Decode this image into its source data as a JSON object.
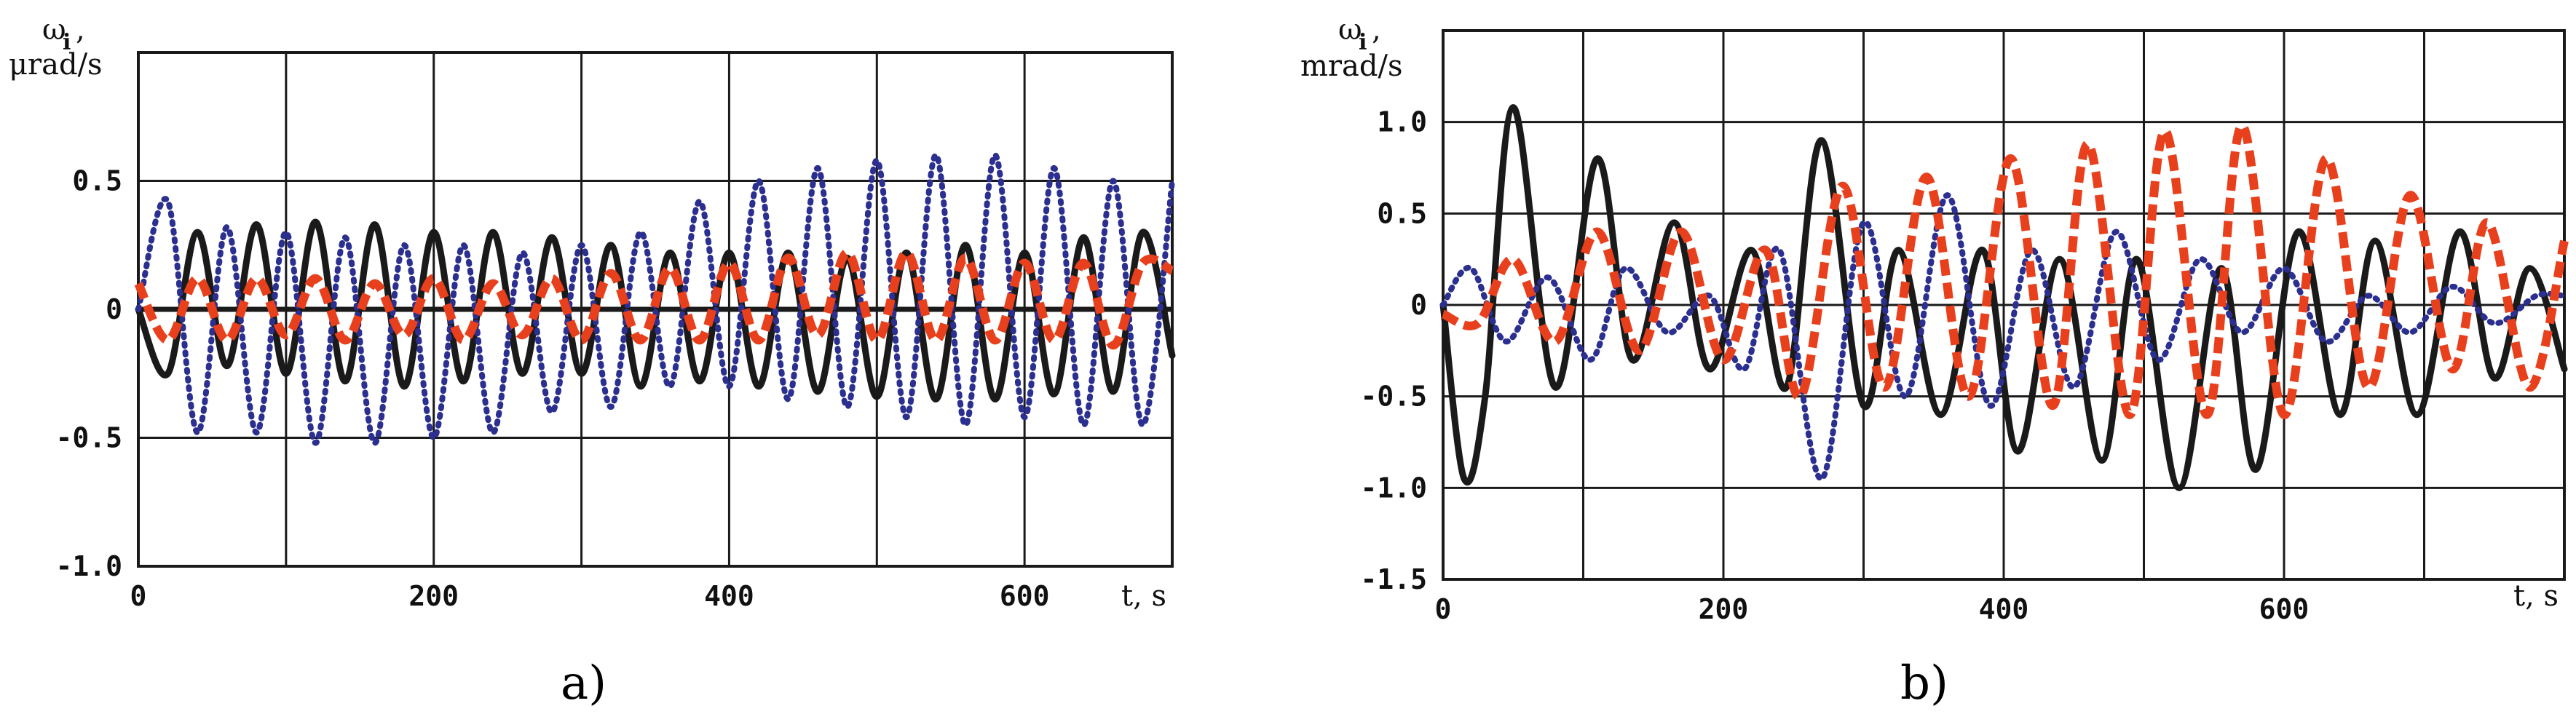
{
  "colors": {
    "series_solid": "#1a1a1a",
    "series_dotted": "#2b2f8f",
    "series_dashed": "#e8401c",
    "grid": "#1a1a1a",
    "zero_line": "#1a1a1a"
  },
  "chart_data": [
    {
      "type": "line",
      "caption": "a)",
      "ylabel_line1": "ω",
      "ylabel_sub": "i",
      "ylabel_comma": ",",
      "ylabel_line2": "μrad/s",
      "xlabel": "t, s",
      "xlim": [
        0,
        700
      ],
      "ylim": [
        -1.0,
        1.0
      ],
      "x_ticks": [
        0,
        200,
        400,
        600
      ],
      "x_tick_labels": [
        "0",
        "200",
        "400",
        "600"
      ],
      "x_grid": [
        0,
        100,
        200,
        300,
        400,
        500,
        600,
        700
      ],
      "y_ticks": [
        0.5,
        0,
        -0.5,
        -1.0
      ],
      "y_tick_labels": [
        "0.5",
        "0",
        "-0.5",
        "-1.0"
      ],
      "y_grid": [
        1.0,
        0.5,
        0,
        -0.5,
        -1.0
      ],
      "grid": true,
      "series": [
        {
          "style": "solid",
          "x": [
            0,
            20,
            40,
            60,
            80,
            100,
            120,
            140,
            160,
            180,
            200,
            220,
            240,
            260,
            280,
            300,
            320,
            340,
            360,
            380,
            400,
            420,
            440,
            460,
            480,
            500,
            520,
            540,
            560,
            580,
            600,
            620,
            640,
            660,
            680,
            700
          ],
          "values": [
            0.0,
            -0.25,
            0.3,
            -0.22,
            0.33,
            -0.25,
            0.34,
            -0.28,
            0.33,
            -0.3,
            0.3,
            -0.28,
            0.3,
            -0.25,
            0.28,
            -0.25,
            0.25,
            -0.3,
            0.22,
            -0.28,
            0.22,
            -0.3,
            0.22,
            -0.32,
            0.2,
            -0.34,
            0.22,
            -0.35,
            0.25,
            -0.35,
            0.22,
            -0.33,
            0.28,
            -0.32,
            0.3,
            -0.18
          ]
        },
        {
          "style": "dotted",
          "x": [
            0,
            20,
            40,
            60,
            80,
            100,
            120,
            140,
            160,
            180,
            200,
            220,
            240,
            260,
            280,
            300,
            320,
            340,
            360,
            380,
            400,
            420,
            440,
            460,
            480,
            500,
            520,
            540,
            560,
            580,
            600,
            620,
            640,
            660,
            680,
            700
          ],
          "values": [
            0.0,
            0.42,
            -0.48,
            0.32,
            -0.48,
            0.3,
            -0.52,
            0.28,
            -0.52,
            0.25,
            -0.5,
            0.25,
            -0.48,
            0.22,
            -0.4,
            0.25,
            -0.38,
            0.3,
            -0.3,
            0.42,
            -0.3,
            0.5,
            -0.35,
            0.55,
            -0.38,
            0.58,
            -0.42,
            0.6,
            -0.45,
            0.6,
            -0.42,
            0.55,
            -0.45,
            0.5,
            -0.45,
            0.5
          ]
        },
        {
          "style": "dashed",
          "x": [
            0,
            20,
            40,
            60,
            80,
            100,
            120,
            140,
            160,
            180,
            200,
            220,
            240,
            260,
            280,
            300,
            320,
            340,
            360,
            380,
            400,
            420,
            440,
            460,
            480,
            500,
            520,
            540,
            560,
            580,
            600,
            620,
            640,
            660,
            680,
            700
          ],
          "values": [
            0.1,
            -0.12,
            0.12,
            -0.12,
            0.12,
            -0.1,
            0.12,
            -0.12,
            0.1,
            -0.1,
            0.12,
            -0.12,
            0.1,
            -0.1,
            0.12,
            -0.12,
            0.14,
            -0.12,
            0.16,
            -0.12,
            0.18,
            -0.12,
            0.2,
            -0.1,
            0.22,
            -0.12,
            0.22,
            -0.12,
            0.2,
            -0.12,
            0.18,
            -0.12,
            0.18,
            -0.14,
            0.18,
            0.15
          ]
        }
      ]
    },
    {
      "type": "line",
      "caption": "b)",
      "ylabel_line1": "ω",
      "ylabel_sub": "i",
      "ylabel_comma": ",",
      "ylabel_line2": "mrad/s",
      "xlabel": "t, s",
      "xlim": [
        0,
        800
      ],
      "ylim": [
        -1.5,
        1.5
      ],
      "x_ticks": [
        0,
        200,
        400,
        600
      ],
      "x_tick_labels": [
        "0",
        "200",
        "400",
        "600"
      ],
      "x_grid": [
        0,
        100,
        200,
        300,
        400,
        500,
        600,
        700,
        800
      ],
      "y_ticks": [
        1.0,
        0.5,
        0,
        -0.5,
        -1.0,
        -1.5
      ],
      "y_tick_labels": [
        "1.0",
        "0.5",
        "0",
        "-0.5",
        "-1.0",
        "-1.5"
      ],
      "y_grid": [
        1.5,
        1.0,
        0.5,
        0,
        -0.5,
        -1.0,
        -1.5
      ],
      "grid": true,
      "series": [
        {
          "style": "solid",
          "x": [
            0,
            15,
            30,
            50,
            80,
            110,
            135,
            165,
            190,
            220,
            245,
            270,
            300,
            325,
            355,
            385,
            410,
            440,
            470,
            495,
            525,
            555,
            580,
            610,
            640,
            665,
            695,
            725,
            750,
            775,
            800
          ],
          "values": [
            0.0,
            -0.95,
            -0.5,
            1.08,
            -0.45,
            0.8,
            -0.3,
            0.45,
            -0.35,
            0.3,
            -0.45,
            0.9,
            -0.55,
            0.3,
            -0.6,
            0.3,
            -0.8,
            0.25,
            -0.85,
            0.25,
            -1.0,
            0.2,
            -0.9,
            0.4,
            -0.6,
            0.35,
            -0.6,
            0.4,
            -0.4,
            0.2,
            -0.35
          ]
        },
        {
          "style": "dotted",
          "x": [
            0,
            20,
            45,
            75,
            105,
            130,
            160,
            190,
            215,
            240,
            270,
            300,
            330,
            360,
            390,
            420,
            450,
            480,
            510,
            540,
            570,
            600,
            630,
            660,
            690,
            720,
            750,
            780,
            800
          ],
          "values": [
            0.0,
            0.2,
            -0.2,
            0.15,
            -0.3,
            0.2,
            -0.15,
            0.05,
            -0.35,
            0.3,
            -0.95,
            0.45,
            -0.5,
            0.6,
            -0.55,
            0.3,
            -0.45,
            0.4,
            -0.3,
            0.25,
            -0.15,
            0.2,
            -0.2,
            0.05,
            -0.15,
            0.1,
            -0.1,
            0.05,
            0.05
          ]
        },
        {
          "style": "dashed",
          "x": [
            0,
            25,
            50,
            80,
            110,
            140,
            170,
            200,
            230,
            255,
            285,
            315,
            345,
            375,
            405,
            435,
            460,
            490,
            515,
            545,
            570,
            600,
            630,
            660,
            690,
            720,
            745,
            775,
            800
          ],
          "values": [
            -0.05,
            -0.1,
            0.25,
            -0.2,
            0.4,
            -0.25,
            0.4,
            -0.3,
            0.3,
            -0.5,
            0.65,
            -0.45,
            0.7,
            -0.5,
            0.8,
            -0.55,
            0.88,
            -0.6,
            0.95,
            -0.6,
            0.98,
            -0.6,
            0.8,
            -0.45,
            0.6,
            -0.35,
            0.45,
            -0.45,
            0.35
          ]
        }
      ]
    }
  ]
}
